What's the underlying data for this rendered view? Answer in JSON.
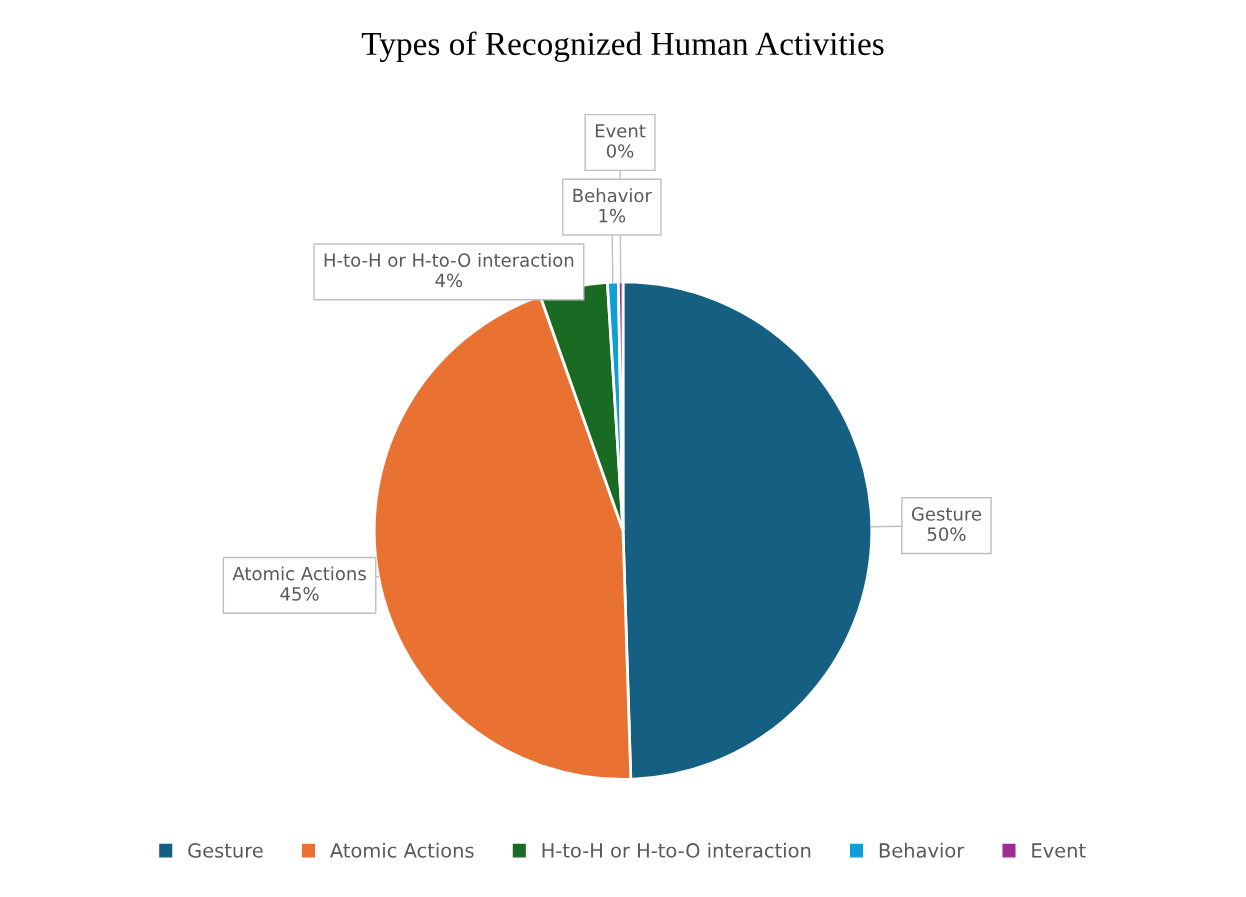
{
  "chart_data": {
    "type": "pie",
    "title": "Types of Recognized Human Activities",
    "categories": [
      "Gesture",
      "Atomic Actions",
      "H-to-H or H-to-O interaction",
      "Behavior",
      "Event"
    ],
    "values": [
      49.5,
      45.1,
      4.4,
      0.7,
      0.3
    ],
    "value_labels": [
      "50%",
      "45%",
      "4%",
      "1%",
      "0%"
    ],
    "colors": [
      "#156082",
      "#e97132",
      "#196b24",
      "#0f9ed5",
      "#a02b93"
    ],
    "legend": "bottom"
  }
}
